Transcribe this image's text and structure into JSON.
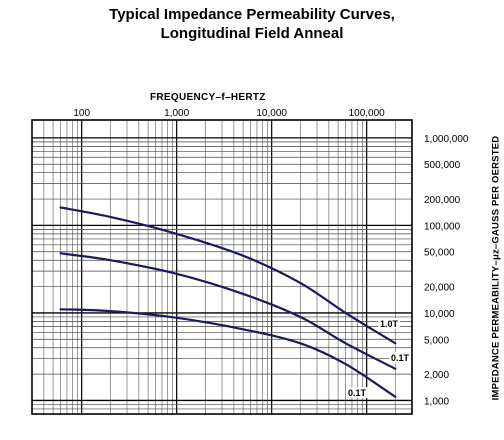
{
  "chart_data": {
    "type": "line",
    "title": "Typical Impedance Permeability Curves,",
    "subtitle": "Longitudinal Field Anneal",
    "xlabel": "FREQUENCY–f–HERTZ",
    "ylabel": "IMPEDANCE PERMEABILITY–μz–GAUSS PER OERSTED",
    "x_scale": "log",
    "y_scale": "log",
    "xlim": [
      30,
      300000
    ],
    "ylim": [
      700,
      1600000
    ],
    "x_ticks": [
      {
        "value": 100,
        "label": "100"
      },
      {
        "value": 1000,
        "label": "1,000"
      },
      {
        "value": 10000,
        "label": "10,000"
      },
      {
        "value": 100000,
        "label": "100,000"
      }
    ],
    "y_ticks": [
      {
        "value": 1000000,
        "label": "1,000,000"
      },
      {
        "value": 500000,
        "label": "500,000"
      },
      {
        "value": 200000,
        "label": "200,000"
      },
      {
        "value": 100000,
        "label": "100,000"
      },
      {
        "value": 50000,
        "label": "50,000"
      },
      {
        "value": 20000,
        "label": "20,000"
      },
      {
        "value": 10000,
        "label": "10,000"
      },
      {
        "value": 5000,
        "label": "5,000"
      },
      {
        "value": 2000,
        "label": "2,000"
      },
      {
        "value": 1000,
        "label": "1,000"
      }
    ],
    "grid": true,
    "series": [
      {
        "name": "1.0T",
        "color": "#1a1a5e",
        "x": [
          60,
          200,
          1000,
          5000,
          20000,
          60000,
          200000
        ],
        "y": [
          160000,
          125000,
          80000,
          45000,
          22000,
          10000,
          4500
        ]
      },
      {
        "name": "0.1T",
        "color": "#1a1a5e",
        "x": [
          60,
          200,
          1000,
          5000,
          20000,
          60000,
          200000
        ],
        "y": [
          48000,
          40000,
          28000,
          16500,
          9000,
          4500,
          2300
        ]
      },
      {
        "name": "0.1T",
        "color": "#1a1a5e",
        "x": [
          60,
          200,
          1000,
          5000,
          20000,
          60000,
          200000
        ],
        "y": [
          11000,
          10500,
          8800,
          6500,
          4500,
          2600,
          1100
        ]
      }
    ]
  }
}
